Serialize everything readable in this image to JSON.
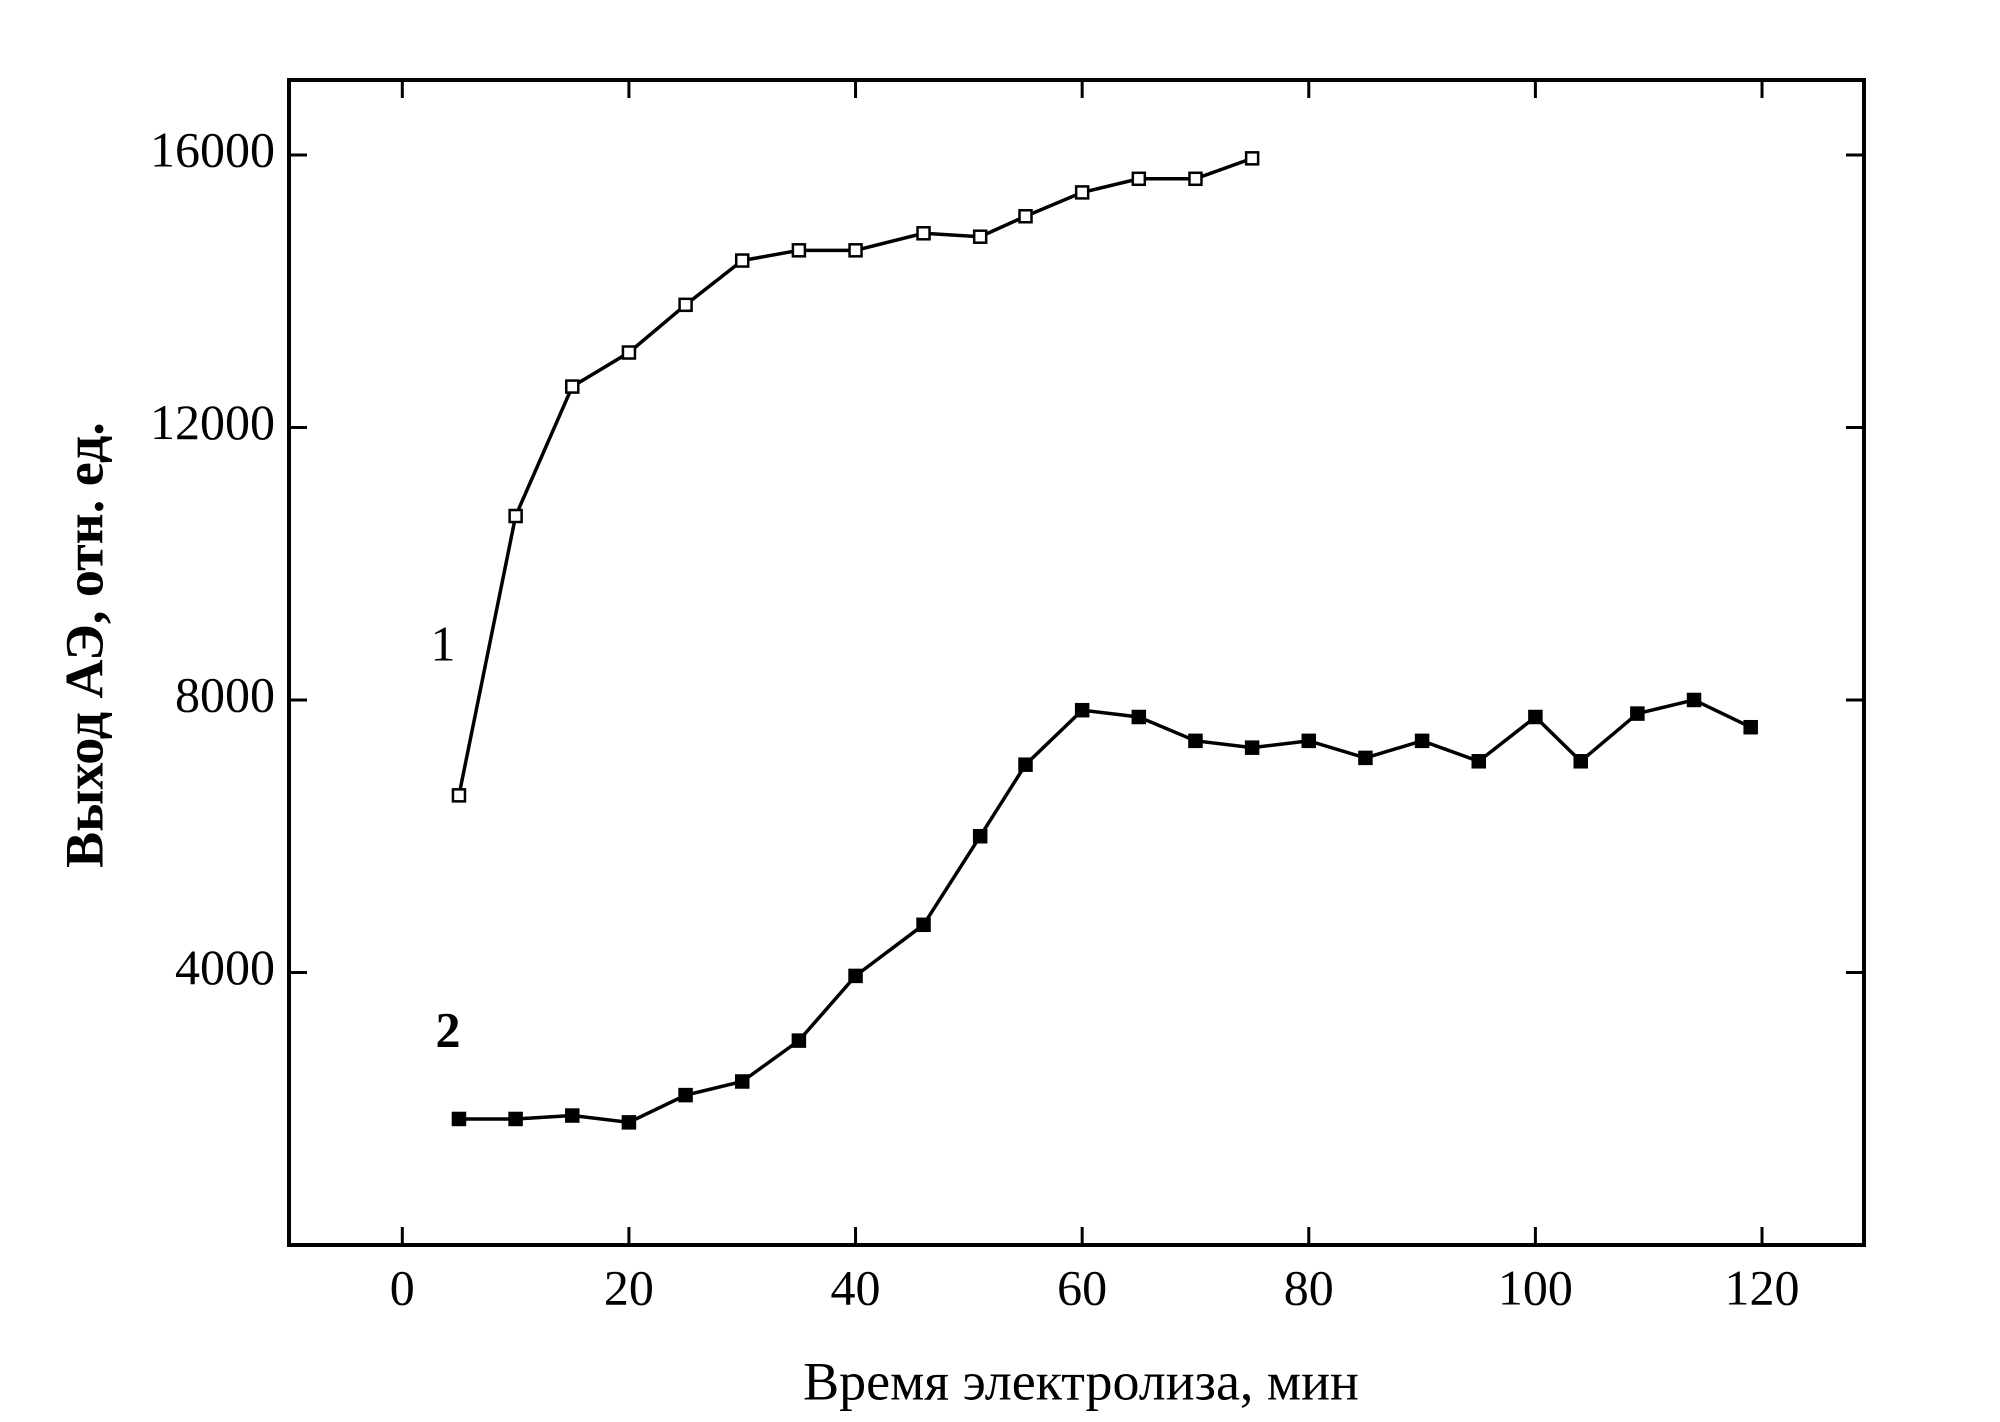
{
  "chart_data": {
    "type": "line",
    "x_label": "Время электролиза, мин",
    "y_label": "Выход АЭ, отн. ед.",
    "xlim": [
      -10,
      129
    ],
    "ylim": [
      0,
      17100
    ],
    "xticks": [
      0,
      20,
      40,
      60,
      80,
      100,
      120
    ],
    "yticks": [
      4000,
      8000,
      12000,
      16000
    ],
    "annotations": [
      "1",
      "2"
    ],
    "series": [
      {
        "color": "#000000",
        "filled": false,
        "x": [
          5,
          10,
          15,
          20,
          25,
          30,
          35,
          40,
          46,
          51,
          55,
          60,
          65,
          70,
          75
        ],
        "values": [
          6600,
          10700,
          12600,
          13100,
          13800,
          14450,
          14600,
          14600,
          14850,
          14800,
          15100,
          15450,
          15650,
          15650,
          15950
        ]
      },
      {
        "color": "#000000",
        "filled": true,
        "x": [
          5,
          10,
          15,
          20,
          25,
          30,
          35,
          40,
          46,
          51,
          55,
          60,
          65,
          70,
          75,
          80,
          85,
          90,
          95,
          100,
          104,
          109,
          114,
          119
        ],
        "values": [
          1850,
          1850,
          1900,
          1800,
          2200,
          2400,
          3000,
          3950,
          4700,
          6000,
          7050,
          7850,
          7750,
          7400,
          7300,
          7400,
          7150,
          7400,
          7100,
          7750,
          7100,
          7800,
          8000,
          7600
        ]
      }
    ]
  }
}
